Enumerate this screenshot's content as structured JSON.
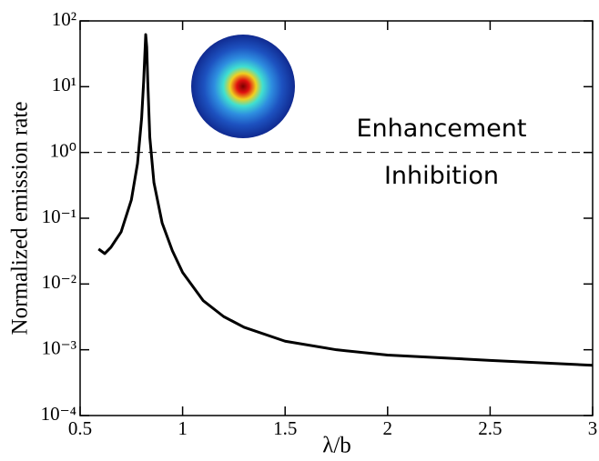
{
  "chart_data": {
    "type": "line",
    "xlabel": "λ/b",
    "ylabel": "Normalized emission rate",
    "x": [
      0.59,
      0.62,
      0.65,
      0.7,
      0.75,
      0.78,
      0.8,
      0.81,
      0.82,
      0.825,
      0.83,
      0.84,
      0.86,
      0.9,
      0.95,
      1.0,
      1.1,
      1.2,
      1.3,
      1.5,
      1.75,
      2.0,
      2.5,
      3.0
    ],
    "values": [
      0.034,
      0.029,
      0.036,
      0.062,
      0.19,
      0.68,
      3.3,
      12,
      62,
      40,
      12,
      1.7,
      0.35,
      0.085,
      0.032,
      0.015,
      0.0056,
      0.0032,
      0.0022,
      0.00135,
      0.001,
      0.00083,
      0.00069,
      0.00058
    ],
    "color": "#000000",
    "xlim": [
      0.5,
      3
    ],
    "ylim": [
      0.0001,
      100
    ],
    "yscale": "log",
    "xticks": [
      0.5,
      1,
      1.5,
      2,
      2.5,
      3
    ],
    "yticks": [
      {
        "value": 0.0001,
        "label": "10⁻⁴"
      },
      {
        "value": 0.001,
        "label": "10⁻³"
      },
      {
        "value": 0.01,
        "label": "10⁻²"
      },
      {
        "value": 0.1,
        "label": "10⁻¹"
      },
      {
        "value": 1,
        "label": "10⁰"
      },
      {
        "value": 10,
        "label": "10¹"
      },
      {
        "value": 100,
        "label": "10²"
      }
    ],
    "reference_line": {
      "y": 1,
      "style": "dashed"
    },
    "annotations": [
      "Enhancement",
      "Inhibition"
    ]
  }
}
